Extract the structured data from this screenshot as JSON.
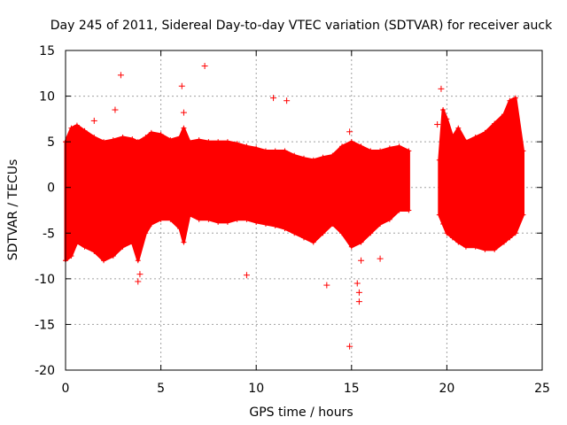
{
  "chart_data": {
    "type": "scatter",
    "title": "Day 245 of 2011, Sidereal Day-to-day VTEC variation (SDTVAR) for receiver auck",
    "xlabel": "GPS time / hours",
    "ylabel": "SDTVAR / TECUs",
    "xlim": [
      0,
      25
    ],
    "ylim": [
      -20,
      15
    ],
    "xticks": [
      0,
      5,
      10,
      15,
      20,
      25
    ],
    "yticks": [
      -20,
      -15,
      -10,
      -5,
      0,
      5,
      10,
      15
    ],
    "grid": true,
    "marker": "+",
    "color": "#ff0000",
    "series": [
      {
        "name": "SDTVAR",
        "dense_envelope": {
          "description": "dense band of points, upper and lower bounds vs time",
          "segments": [
            {
              "x": [
                0.0,
                0.3,
                0.6,
                1.0,
                1.5,
                2.0,
                2.5,
                3.0,
                3.5,
                3.8,
                4.2,
                4.5,
                5.0,
                5.5,
                6.0,
                6.2,
                6.5,
                7.0,
                7.5,
                8.0,
                8.5,
                9.0,
                9.5,
                10.0,
                10.5,
                11.0,
                11.5,
                12.0,
                12.5,
                13.0,
                13.5,
                14.0,
                14.5,
                15.0,
                15.5,
                16.0,
                16.5,
                17.0,
                17.5,
                18.0
              ],
              "upper": [
                5.0,
                6.5,
                6.8,
                6.2,
                5.5,
                5.0,
                5.2,
                5.5,
                5.3,
                5.0,
                5.5,
                6.0,
                5.8,
                5.2,
                5.5,
                6.5,
                5.0,
                5.2,
                5.0,
                5.0,
                5.0,
                4.8,
                4.5,
                4.3,
                4.0,
                4.0,
                4.0,
                3.5,
                3.2,
                3.0,
                3.3,
                3.5,
                4.5,
                5.0,
                4.5,
                4.0,
                4.0,
                4.3,
                4.5,
                4.0
              ],
              "lower": [
                -8.0,
                -7.5,
                -6.0,
                -6.5,
                -7.0,
                -8.0,
                -7.5,
                -6.5,
                -6.0,
                -8.0,
                -5.0,
                -4.0,
                -3.5,
                -3.5,
                -4.5,
                -6.0,
                -3.0,
                -3.5,
                -3.5,
                -3.8,
                -3.8,
                -3.5,
                -3.5,
                -3.8,
                -4.0,
                -4.2,
                -4.5,
                -5.0,
                -5.5,
                -6.0,
                -5.0,
                -4.0,
                -5.0,
                -6.5,
                -6.0,
                -5.0,
                -4.0,
                -3.5,
                -2.5,
                -2.5
              ]
            },
            {
              "x": [
                19.6,
                19.8,
                20.0,
                20.3,
                20.6,
                21.0,
                21.5,
                22.0,
                22.5,
                23.0,
                23.3,
                23.6,
                24.0
              ],
              "upper": [
                3.0,
                8.5,
                7.5,
                5.5,
                6.5,
                5.0,
                5.5,
                6.0,
                7.0,
                8.0,
                9.5,
                9.8,
                4.0
              ],
              "lower": [
                -3.0,
                -4.0,
                -5.0,
                -5.5,
                -6.0,
                -6.5,
                -6.5,
                -6.8,
                -6.8,
                -6.0,
                -5.5,
                -5.0,
                -3.0
              ]
            }
          ]
        },
        "outliers": [
          {
            "x": 1.5,
            "y": 7.3
          },
          {
            "x": 2.6,
            "y": 8.5
          },
          {
            "x": 2.9,
            "y": 12.3
          },
          {
            "x": 6.1,
            "y": 11.1
          },
          {
            "x": 6.2,
            "y": 8.2
          },
          {
            "x": 7.3,
            "y": 13.3
          },
          {
            "x": 9.5,
            "y": -9.6
          },
          {
            "x": 10.9,
            "y": 9.8
          },
          {
            "x": 11.6,
            "y": 9.5
          },
          {
            "x": 13.7,
            "y": -10.7
          },
          {
            "x": 14.9,
            "y": 6.1
          },
          {
            "x": 14.9,
            "y": -17.4
          },
          {
            "x": 15.3,
            "y": -10.5
          },
          {
            "x": 15.4,
            "y": -11.5
          },
          {
            "x": 15.4,
            "y": -12.5
          },
          {
            "x": 15.5,
            "y": -8.0
          },
          {
            "x": 16.5,
            "y": -7.8
          },
          {
            "x": 3.8,
            "y": -10.3
          },
          {
            "x": 3.9,
            "y": -9.5
          },
          {
            "x": 19.5,
            "y": 6.9
          },
          {
            "x": 19.7,
            "y": 10.8
          }
        ]
      }
    ]
  }
}
